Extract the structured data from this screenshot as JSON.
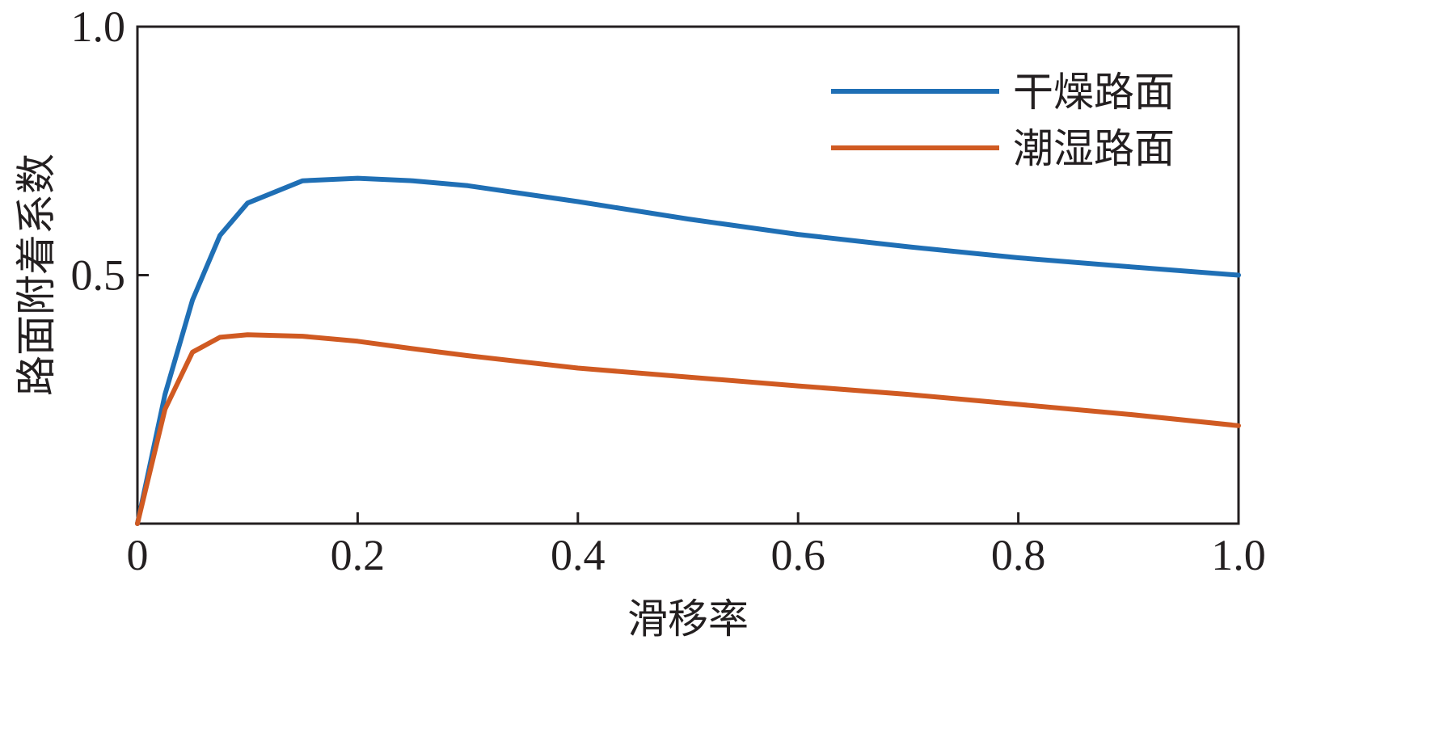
{
  "chart_data": {
    "type": "line",
    "title": "",
    "xlabel": "滑移率",
    "ylabel": "路面附着系数",
    "xlim": [
      0,
      1.0
    ],
    "ylim": [
      0,
      1.0
    ],
    "x_ticks": [
      {
        "value": 0,
        "label": "0"
      },
      {
        "value": 0.2,
        "label": "0.2"
      },
      {
        "value": 0.4,
        "label": "0.4"
      },
      {
        "value": 0.6,
        "label": "0.6"
      },
      {
        "value": 0.8,
        "label": "0.8"
      },
      {
        "value": 1.0,
        "label": "1.0"
      }
    ],
    "y_ticks": [
      {
        "value": 0.5,
        "label": "0.5"
      },
      {
        "value": 1.0,
        "label": "1.0"
      }
    ],
    "grid": false,
    "legend_position": "top-right",
    "series": [
      {
        "name": "干燥路面",
        "color": "#1f6fb5",
        "x": [
          0,
          0.025,
          0.05,
          0.075,
          0.1,
          0.15,
          0.2,
          0.25,
          0.3,
          0.4,
          0.5,
          0.6,
          0.7,
          0.8,
          0.9,
          1.0
        ],
        "y": [
          0,
          0.26,
          0.45,
          0.58,
          0.645,
          0.69,
          0.695,
          0.69,
          0.68,
          0.648,
          0.613,
          0.582,
          0.557,
          0.535,
          0.517,
          0.5
        ]
      },
      {
        "name": "潮湿路面",
        "color": "#d05a22",
        "x": [
          0,
          0.025,
          0.05,
          0.075,
          0.1,
          0.15,
          0.2,
          0.25,
          0.3,
          0.4,
          0.5,
          0.6,
          0.7,
          0.8,
          0.9,
          1.0
        ],
        "y": [
          0,
          0.23,
          0.345,
          0.375,
          0.38,
          0.377,
          0.367,
          0.352,
          0.338,
          0.313,
          0.295,
          0.277,
          0.26,
          0.24,
          0.22,
          0.197
        ]
      }
    ]
  }
}
